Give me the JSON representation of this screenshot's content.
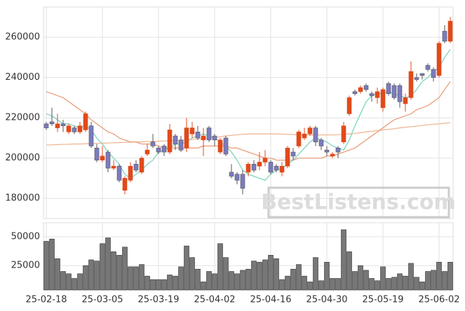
{
  "chart_data": [
    {
      "type": "candlestick",
      "watermark": "BestListens.com",
      "categories": [
        "25-02-18",
        null,
        null,
        null,
        null,
        null,
        null,
        null,
        null,
        null,
        "25-03-05",
        null,
        null,
        null,
        null,
        null,
        null,
        null,
        null,
        null,
        "25-03-19",
        null,
        null,
        null,
        null,
        null,
        null,
        null,
        null,
        null,
        "25-04-02",
        null,
        null,
        null,
        null,
        null,
        null,
        null,
        null,
        null,
        "25-04-16",
        null,
        null,
        null,
        null,
        null,
        null,
        null,
        null,
        null,
        "25-04-30",
        null,
        null,
        null,
        null,
        null,
        null,
        null,
        null,
        null,
        "25-05-19",
        null,
        null,
        null,
        null,
        null,
        null,
        null,
        null,
        null,
        "25-06-02",
        null,
        null
      ],
      "open": [
        217000,
        218000,
        215000,
        217000,
        213000,
        215000,
        213000,
        214000,
        216000,
        205000,
        199000,
        203000,
        195000,
        196000,
        184000,
        189000,
        197000,
        193000,
        202000,
        208000,
        205000,
        206000,
        203000,
        211000,
        209000,
        205000,
        212000,
        213000,
        209000,
        215000,
        211000,
        203000,
        210000,
        193000,
        192000,
        192000,
        193000,
        197000,
        196000,
        198000,
        198000,
        196000,
        193000,
        196000,
        203000,
        206000,
        210000,
        212000,
        215000,
        209000,
        204000,
        201000,
        205000,
        208000,
        222000,
        233000,
        233000,
        236000,
        232000,
        230000,
        225000,
        237000,
        236000,
        236000,
        227000,
        230000,
        240000,
        242000,
        246000,
        244000,
        241000,
        263000,
        258000
      ],
      "high": [
        218000,
        225000,
        222000,
        219000,
        217000,
        216000,
        218000,
        223000,
        218000,
        207000,
        206000,
        204000,
        199000,
        197000,
        191000,
        198000,
        199000,
        201000,
        207000,
        212000,
        206000,
        207000,
        217000,
        212000,
        211000,
        220000,
        218000,
        216000,
        215000,
        216000,
        212000,
        210000,
        211000,
        197000,
        193000,
        194000,
        198000,
        199000,
        203000,
        204000,
        199000,
        197000,
        198000,
        206000,
        205000,
        214000,
        215000,
        216000,
        216000,
        210000,
        206000,
        203000,
        206000,
        218000,
        231000,
        234000,
        236000,
        237000,
        233000,
        235000,
        235000,
        238000,
        237000,
        237000,
        232000,
        248000,
        242000,
        242000,
        247000,
        245000,
        258000,
        266000,
        270000
      ],
      "low": [
        214000,
        216000,
        213000,
        213000,
        212000,
        212000,
        212000,
        213000,
        205000,
        198000,
        198000,
        193000,
        194000,
        188000,
        182000,
        188000,
        193000,
        192000,
        201000,
        205000,
        202000,
        201000,
        202000,
        204000,
        203000,
        203000,
        210000,
        209000,
        201000,
        208000,
        206000,
        202000,
        201000,
        190000,
        187000,
        182000,
        191000,
        193000,
        194000,
        196000,
        192000,
        193000,
        191000,
        195000,
        199000,
        205000,
        209000,
        211000,
        206000,
        204000,
        201000,
        200000,
        200000,
        207000,
        221000,
        231000,
        232000,
        233000,
        228000,
        227000,
        223000,
        231000,
        229000,
        225000,
        223000,
        229000,
        238000,
        239000,
        243000,
        238000,
        240000,
        257000,
        257000
      ],
      "close": [
        215000,
        217000,
        217000,
        216000,
        216000,
        213000,
        216000,
        222000,
        206000,
        199000,
        201000,
        195000,
        196000,
        189000,
        190000,
        196000,
        194000,
        200000,
        204000,
        206000,
        203000,
        203000,
        214000,
        207000,
        204000,
        215000,
        215000,
        210000,
        211000,
        209000,
        209000,
        209000,
        202000,
        191000,
        189000,
        185000,
        197000,
        194000,
        198000,
        200000,
        193000,
        194000,
        196000,
        205000,
        201000,
        213000,
        212000,
        215000,
        208000,
        206000,
        203000,
        202000,
        203000,
        216000,
        230000,
        232000,
        235000,
        234000,
        231000,
        233000,
        234000,
        232000,
        230000,
        228000,
        230000,
        243000,
        239000,
        241000,
        244000,
        240000,
        257000,
        258000,
        268000
      ],
      "up_color": "#e04a1a",
      "down_color": "#7b7bc0",
      "lines": [
        {
          "color": "#f0b896",
          "values": [
            206500,
            206600,
            206700,
            206800,
            206900,
            207000,
            207000,
            207100,
            207200,
            207300,
            207400,
            207500,
            207600,
            207700,
            207800,
            207900,
            208000,
            208100,
            208200,
            208300,
            208400,
            208500,
            208600,
            208700,
            208800,
            209000,
            209200,
            209500,
            209800,
            210000,
            210300,
            210600,
            211000,
            211300,
            211600,
            211800,
            212000,
            212000,
            212000,
            212000,
            212000,
            212000,
            211900,
            211800,
            211700,
            211600,
            211500,
            211500,
            211500,
            211500,
            211500,
            211500,
            211600,
            211800,
            212000,
            212300,
            212600,
            213000,
            213300,
            213700,
            214000,
            214300,
            214600,
            215000,
            215300,
            215600,
            215900,
            216200,
            216500,
            216800,
            217000,
            217300,
            217600
          ]
        },
        {
          "color": "#e8a07a",
          "values": [
            233000,
            232000,
            231000,
            230000,
            228000,
            226000,
            224000,
            222000,
            219000,
            217000,
            215000,
            213000,
            212000,
            210000,
            209000,
            208000,
            208000,
            207000,
            207000,
            207000,
            206000,
            205000,
            205000,
            205000,
            205000,
            205000,
            205000,
            205000,
            206000,
            206000,
            206000,
            206000,
            206000,
            205000,
            205000,
            204000,
            203000,
            202000,
            201000,
            200000,
            200000,
            199000,
            199000,
            199000,
            199000,
            200000,
            200000,
            200000,
            200000,
            200000,
            201000,
            201000,
            202000,
            203000,
            204000,
            205000,
            207000,
            209000,
            211000,
            213000,
            215000,
            217000,
            219000,
            220000,
            221000,
            222000,
            224000,
            225000,
            226000,
            228000,
            230000,
            234000,
            238000
          ]
        },
        {
          "color": "#7fd4c0",
          "values": [
            222000,
            221000,
            219000,
            217000,
            217000,
            216000,
            215000,
            216000,
            214000,
            210000,
            207000,
            203000,
            200000,
            197000,
            192000,
            190000,
            192000,
            194000,
            197000,
            199000,
            203000,
            204000,
            205000,
            207000,
            207000,
            208000,
            210000,
            211000,
            212000,
            211000,
            210000,
            208000,
            206000,
            203000,
            199000,
            194000,
            192000,
            191000,
            190000,
            189000,
            192000,
            194000,
            195000,
            197000,
            199000,
            202000,
            205000,
            208000,
            210000,
            209000,
            208000,
            206000,
            205000,
            204000,
            209000,
            216000,
            222000,
            228000,
            231000,
            232000,
            232000,
            233000,
            232000,
            231000,
            230000,
            231000,
            234000,
            238000,
            240000,
            243000,
            245000,
            250000,
            254000
          ]
        }
      ],
      "ylim": [
        170000,
        275000
      ],
      "yticks": [
        180000,
        200000,
        220000,
        240000,
        260000
      ],
      "grid": true
    },
    {
      "type": "bar",
      "color": "#777777",
      "values": [
        46000,
        48000,
        31000,
        20000,
        18000,
        14000,
        18000,
        25000,
        30000,
        29000,
        44000,
        49000,
        37000,
        34000,
        41000,
        24000,
        24000,
        26000,
        16000,
        13000,
        13000,
        13000,
        17000,
        16000,
        24000,
        42000,
        32000,
        22000,
        11000,
        20000,
        18000,
        44000,
        32000,
        20000,
        18000,
        21000,
        22000,
        29000,
        28000,
        30000,
        34000,
        31000,
        13000,
        16000,
        22000,
        26000,
        16000,
        11000,
        32000,
        12000,
        28000,
        14000,
        14000,
        56000,
        37000,
        20000,
        25000,
        21000,
        14000,
        12000,
        24000,
        14000,
        15000,
        18000,
        16000,
        27000,
        15000,
        11000,
        20000,
        21000,
        28000,
        20000,
        28000
      ],
      "ylim": [
        4000,
        62000
      ],
      "yticks": [
        25000,
        50000
      ],
      "grid": true
    }
  ]
}
